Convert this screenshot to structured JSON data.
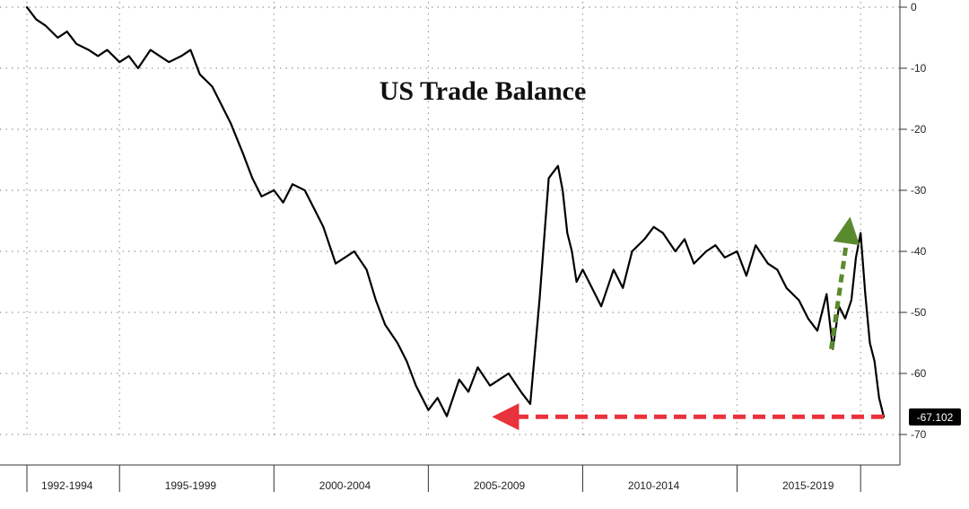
{
  "chart_data": {
    "type": "line",
    "title": "US Trade Balance",
    "xlabel": "",
    "ylabel": "",
    "x_start": 1992.0,
    "x_end": 2019.75,
    "ylim": [
      -70,
      0
    ],
    "y_ticks": [
      0,
      -10,
      -20,
      -30,
      -40,
      -50,
      -60,
      -70
    ],
    "x_tick_labels": [
      {
        "label": "1992-1994",
        "year": 1993.3
      },
      {
        "label": "1995-1999",
        "year": 1997.3
      },
      {
        "label": "2000-2004",
        "year": 2002.3
      },
      {
        "label": "2005-2009",
        "year": 2007.3
      },
      {
        "label": "2010-2014",
        "year": 2012.3
      },
      {
        "label": "2015-2019",
        "year": 2017.3
      }
    ],
    "x_separators": [
      1992.0,
      1995.0,
      2000.0,
      2005.0,
      2010.0,
      2015.0,
      2019.0
    ],
    "grid": true,
    "last_value_label": "-67.102",
    "annotations": [
      {
        "type": "arrow",
        "color": "#e8323c",
        "style": "dashed",
        "from": {
          "x": 2019.75,
          "y": -67.1
        },
        "to": {
          "x": 2007.5,
          "y": -67.1
        }
      },
      {
        "type": "arrow",
        "color": "#5a8a2e",
        "style": "dashed",
        "from": {
          "x": 2018.05,
          "y": -56
        },
        "to": {
          "x": 2018.6,
          "y": -36.5
        }
      }
    ],
    "series": [
      {
        "color": "#000000",
        "x": [
          1992.0,
          1992.3,
          1992.6,
          1993.0,
          1993.3,
          1993.6,
          1994.0,
          1994.3,
          1994.6,
          1995.0,
          1995.3,
          1995.6,
          1996.0,
          1996.3,
          1996.6,
          1997.0,
          1997.3,
          1997.6,
          1998.0,
          1998.3,
          1998.6,
          1999.0,
          1999.3,
          1999.6,
          2000.0,
          2000.3,
          2000.6,
          2001.0,
          2001.3,
          2001.6,
          2002.0,
          2002.3,
          2002.6,
          2003.0,
          2003.3,
          2003.6,
          2004.0,
          2004.3,
          2004.6,
          2005.0,
          2005.3,
          2005.6,
          2006.0,
          2006.3,
          2006.6,
          2007.0,
          2007.3,
          2007.6,
          2008.0,
          2008.3,
          2008.6,
          2008.9,
          2009.2,
          2009.35,
          2009.5,
          2009.65,
          2009.8,
          2010.0,
          2010.3,
          2010.6,
          2011.0,
          2011.3,
          2011.6,
          2012.0,
          2012.3,
          2012.6,
          2013.0,
          2013.3,
          2013.6,
          2014.0,
          2014.3,
          2014.6,
          2015.0,
          2015.3,
          2015.6,
          2016.0,
          2016.3,
          2016.6,
          2017.0,
          2017.3,
          2017.6,
          2017.9,
          2018.1,
          2018.3,
          2018.5,
          2018.7,
          2018.85,
          2019.0,
          2019.15,
          2019.3,
          2019.45,
          2019.6,
          2019.75
        ],
        "values": [
          0,
          -2,
          -3,
          -5,
          -4,
          -6,
          -7,
          -8,
          -7,
          -9,
          -8,
          -10,
          -7,
          -8,
          -9,
          -8,
          -7,
          -11,
          -13,
          -16,
          -19,
          -24,
          -28,
          -31,
          -30,
          -32,
          -29,
          -30,
          -33,
          -36,
          -42,
          -41,
          -40,
          -43,
          -48,
          -52,
          -55,
          -58,
          -62,
          -66,
          -64,
          -67,
          -61,
          -63,
          -59,
          -62,
          -61,
          -60,
          -63,
          -65,
          -48,
          -28,
          -26,
          -30,
          -37,
          -40,
          -45,
          -43,
          -46,
          -49,
          -43,
          -46,
          -40,
          -38,
          -36,
          -37,
          -40,
          -38,
          -42,
          -40,
          -39,
          -41,
          -40,
          -44,
          -39,
          -42,
          -43,
          -46,
          -48,
          -51,
          -53,
          -47,
          -56,
          -49,
          -51,
          -48,
          -41,
          -37,
          -47,
          -55,
          -58,
          -64,
          -67.102
        ]
      }
    ]
  }
}
